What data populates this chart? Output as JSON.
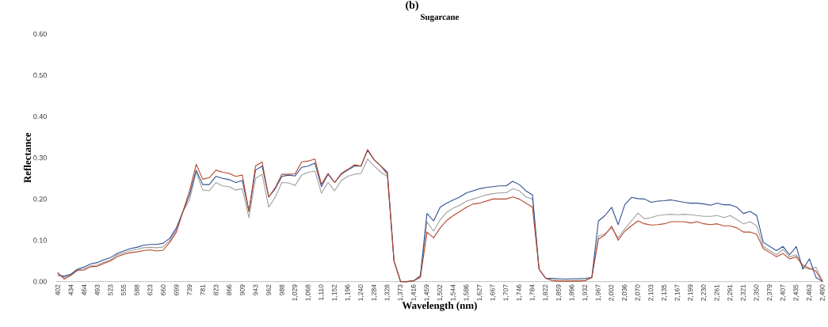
{
  "chart_data": {
    "type": "line",
    "title": "Sugarcane",
    "xlabel": "Wavelength (nm)",
    "ylabel": "Reflectance",
    "annotations": [
      "(b)"
    ],
    "categories": [
      "402",
      null,
      "434",
      null,
      "464",
      null,
      "493",
      null,
      "523",
      null,
      "555",
      null,
      "588",
      null,
      "623",
      null,
      "660",
      null,
      "699",
      null,
      "739",
      null,
      "781",
      null,
      "823",
      null,
      "866",
      null,
      "909",
      null,
      "943",
      null,
      "962",
      null,
      "988",
      null,
      "1,029",
      null,
      "1,068",
      null,
      "1,110",
      null,
      "1,152",
      null,
      "1,196",
      null,
      "1,240",
      null,
      "1,284",
      null,
      "1,328",
      null,
      "1,373",
      null,
      "1,416",
      null,
      "1,459",
      null,
      "1,502",
      null,
      "1,544",
      null,
      "1,586",
      null,
      "1,627",
      null,
      "1,667",
      null,
      "1,707",
      null,
      "1,746",
      null,
      "1,784",
      null,
      "1,822",
      null,
      "1,859",
      null,
      "1,896",
      null,
      "1,932",
      null,
      "1,967",
      null,
      "2,002",
      null,
      "2,036",
      null,
      "2,070",
      null,
      "2,103",
      null,
      "2,135",
      null,
      "2,167",
      null,
      "2,199",
      null,
      "2,230",
      null,
      "2,261",
      null,
      "2,291",
      null,
      "2,321",
      null,
      "2,350",
      null,
      "2,379",
      null,
      "2,407",
      null,
      "2,435",
      null,
      "2,463",
      null,
      "2,490"
    ],
    "series": [
      {
        "color": "#a0a0a0",
        "values": [
          0.02,
          0.01,
          0.017,
          0.028,
          0.03,
          0.038,
          0.04,
          0.047,
          0.052,
          0.064,
          0.07,
          0.075,
          0.078,
          0.082,
          0.083,
          0.082,
          0.084,
          0.1,
          0.125,
          0.17,
          0.198,
          0.265,
          0.222,
          0.22,
          0.24,
          0.232,
          0.23,
          0.222,
          0.225,
          0.155,
          0.25,
          0.26,
          0.18,
          0.205,
          0.24,
          0.239,
          0.233,
          0.258,
          0.265,
          0.268,
          0.214,
          0.24,
          0.22,
          0.245,
          0.255,
          0.26,
          0.262,
          0.297,
          0.28,
          0.265,
          0.255,
          0.05,
          0,
          0,
          0.002,
          0.012,
          0.145,
          0.122,
          0.15,
          0.168,
          0.178,
          0.185,
          0.195,
          0.2,
          0.205,
          0.21,
          0.213,
          0.215,
          0.215,
          0.225,
          0.22,
          0.205,
          0.2,
          0.03,
          0.008,
          0.005,
          0.003,
          0.002,
          0.003,
          0.003,
          0.004,
          0.01,
          0.11,
          0.116,
          0.13,
          0.106,
          0.128,
          0.147,
          0.166,
          0.152,
          0.155,
          0.16,
          0.162,
          0.163,
          0.162,
          0.163,
          0.162,
          0.16,
          0.158,
          0.158,
          0.16,
          0.155,
          0.16,
          0.15,
          0.14,
          0.145,
          0.135,
          0.085,
          0.075,
          0.065,
          0.078,
          0.06,
          0.065,
          0.035,
          0.03,
          0.035,
          0
        ]
      },
      {
        "color": "#2f4f8f",
        "values": [
          0.015,
          0.013,
          0.018,
          0.03,
          0.035,
          0.043,
          0.046,
          0.053,
          0.058,
          0.068,
          0.074,
          0.08,
          0.083,
          0.088,
          0.09,
          0.09,
          0.093,
          0.105,
          0.13,
          0.17,
          0.21,
          0.27,
          0.235,
          0.235,
          0.255,
          0.25,
          0.247,
          0.24,
          0.245,
          0.17,
          0.27,
          0.28,
          0.205,
          0.225,
          0.255,
          0.258,
          0.256,
          0.277,
          0.28,
          0.287,
          0.23,
          0.26,
          0.24,
          0.26,
          0.27,
          0.28,
          0.28,
          0.318,
          0.295,
          0.28,
          0.265,
          0.05,
          0,
          0,
          0.002,
          0.015,
          0.165,
          0.147,
          0.18,
          0.19,
          0.198,
          0.205,
          0.215,
          0.22,
          0.225,
          0.228,
          0.23,
          0.232,
          0.232,
          0.243,
          0.235,
          0.22,
          0.21,
          0.03,
          0.008,
          0.008,
          0.007,
          0.006,
          0.007,
          0.007,
          0.008,
          0.01,
          0.147,
          0.16,
          0.18,
          0.138,
          0.186,
          0.204,
          0.201,
          0.2,
          0.192,
          0.195,
          0.196,
          0.198,
          0.195,
          0.192,
          0.19,
          0.19,
          0.188,
          0.185,
          0.19,
          0.186,
          0.186,
          0.18,
          0.165,
          0.17,
          0.16,
          0.095,
          0.085,
          0.075,
          0.085,
          0.065,
          0.085,
          0.03,
          0.055,
          0.01,
          0
        ]
      },
      {
        "color": "#b5482a",
        "values": [
          0.022,
          0.006,
          0.015,
          0.027,
          0.028,
          0.036,
          0.037,
          0.044,
          0.05,
          0.06,
          0.066,
          0.07,
          0.072,
          0.075,
          0.077,
          0.074,
          0.076,
          0.095,
          0.12,
          0.17,
          0.22,
          0.284,
          0.248,
          0.252,
          0.27,
          0.265,
          0.262,
          0.255,
          0.258,
          0.17,
          0.28,
          0.29,
          0.205,
          0.228,
          0.26,
          0.26,
          0.261,
          0.29,
          0.292,
          0.297,
          0.236,
          0.262,
          0.24,
          0.262,
          0.272,
          0.283,
          0.28,
          0.32,
          0.295,
          0.28,
          0.26,
          0.05,
          0,
          0,
          0.002,
          0.01,
          0.12,
          0.106,
          0.13,
          0.148,
          0.16,
          0.17,
          0.18,
          0.188,
          0.19,
          0.195,
          0.2,
          0.2,
          0.2,
          0.205,
          0.2,
          0.19,
          0.18,
          0.03,
          0.008,
          0.002,
          0.001,
          0.001,
          0.001,
          0.001,
          0.002,
          0.01,
          0.103,
          0.113,
          0.134,
          0.1,
          0.122,
          0.135,
          0.147,
          0.14,
          0.137,
          0.138,
          0.14,
          0.145,
          0.145,
          0.145,
          0.142,
          0.145,
          0.14,
          0.138,
          0.14,
          0.135,
          0.135,
          0.13,
          0.12,
          0.12,
          0.115,
          0.08,
          0.07,
          0.06,
          0.068,
          0.055,
          0.06,
          0.04,
          0.032,
          0.025,
          0
        ]
      }
    ],
    "ylim": [
      0,
      0.6
    ],
    "yticks": [
      {
        "value": 0,
        "label": "0.00"
      },
      {
        "value": 0.1,
        "label": "0.10"
      },
      {
        "value": 0.2,
        "label": "0.20"
      },
      {
        "value": 0.3,
        "label": "0.30"
      },
      {
        "value": 0.4,
        "label": "0.40"
      },
      {
        "value": 0.5,
        "label": "0.50"
      },
      {
        "value": 0.6,
        "label": "0.60"
      }
    ],
    "grid": false,
    "legend": false,
    "marker": "none",
    "line_style": "solid"
  }
}
